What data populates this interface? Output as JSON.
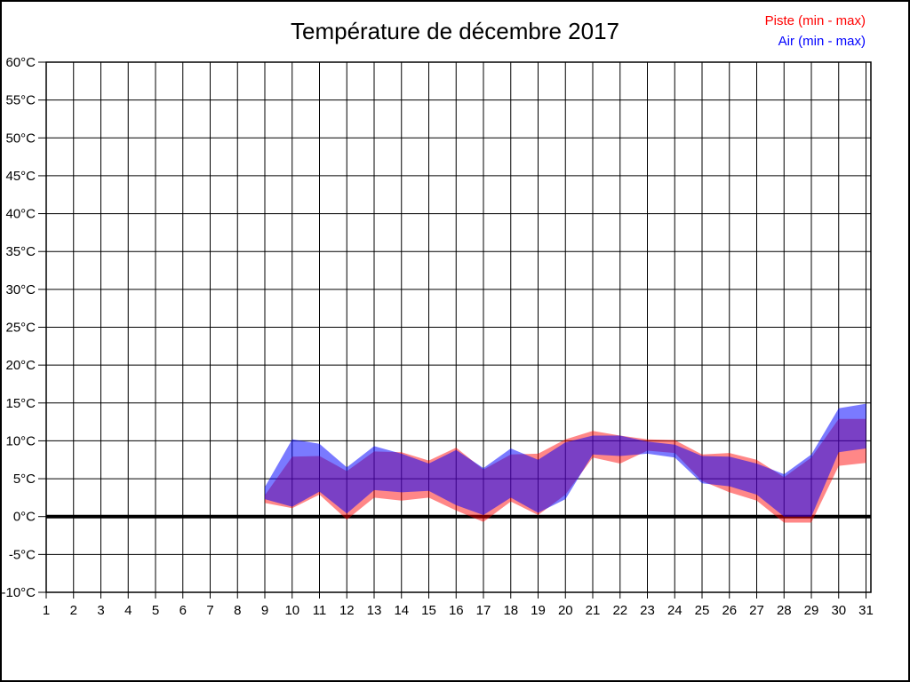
{
  "title": "Température de décembre 2017",
  "legend": {
    "piste_label": "Piste (min - max)",
    "air_label": "Air (min - max)",
    "piste_color": "#ff0000",
    "air_color": "#0000ff"
  },
  "chart_data": {
    "type": "area",
    "title": "Température de décembre 2017",
    "xlabel": "",
    "ylabel": "",
    "y_unit": "°C",
    "ylim": [
      -10,
      60
    ],
    "xlim": [
      1,
      31
    ],
    "grid": true,
    "zero_line_thick": true,
    "legend_position": "top-right-outside",
    "x_ticks": [
      1,
      2,
      3,
      4,
      5,
      6,
      7,
      8,
      9,
      10,
      11,
      12,
      13,
      14,
      15,
      16,
      17,
      18,
      19,
      20,
      21,
      22,
      23,
      24,
      25,
      26,
      27,
      28,
      29,
      30,
      31
    ],
    "y_ticks": [
      -10,
      -5,
      0,
      5,
      10,
      15,
      20,
      25,
      30,
      35,
      40,
      45,
      50,
      55,
      60
    ],
    "days": [
      9,
      10,
      11,
      12,
      13,
      14,
      15,
      16,
      17,
      18,
      19,
      20,
      21,
      22,
      23,
      24,
      25,
      26,
      27,
      28,
      29,
      30,
      31
    ],
    "series": [
      {
        "name": "Piste (min - max)",
        "legend_color": "#ff0000",
        "color": "rgba(255,0,0,0.47)",
        "min": [
          1.8,
          1.1,
          2.9,
          -0.4,
          2.5,
          2.1,
          2.5,
          0.8,
          -0.7,
          2.0,
          0.2,
          2.9,
          7.8,
          7.0,
          8.7,
          8.4,
          4.7,
          3.2,
          2.1,
          -0.8,
          -0.8,
          6.7,
          7.1
        ],
        "max": [
          2.8,
          7.9,
          8.0,
          6.0,
          8.6,
          8.5,
          7.4,
          9.1,
          6.2,
          8.2,
          8.3,
          10.2,
          11.3,
          10.7,
          10.2,
          10.1,
          8.2,
          8.4,
          7.5,
          5.2,
          7.8,
          12.9,
          12.9
        ]
      },
      {
        "name": "Air (min - max)",
        "legend_color": "#0000ff",
        "color": "rgba(0,0,255,0.52)",
        "min": [
          2.3,
          1.3,
          3.3,
          0.4,
          3.5,
          3.2,
          3.4,
          1.5,
          0.2,
          2.5,
          0.5,
          2.3,
          8.2,
          8.0,
          8.3,
          7.8,
          4.4,
          4.0,
          2.9,
          0.0,
          0.0,
          8.5,
          9.0
        ],
        "max": [
          3.9,
          10.2,
          9.6,
          6.5,
          9.3,
          8.3,
          7.0,
          8.8,
          6.4,
          9.0,
          7.5,
          9.8,
          10.7,
          10.7,
          9.9,
          9.5,
          8.0,
          7.9,
          7.0,
          5.6,
          8.2,
          14.3,
          14.9
        ]
      }
    ]
  }
}
